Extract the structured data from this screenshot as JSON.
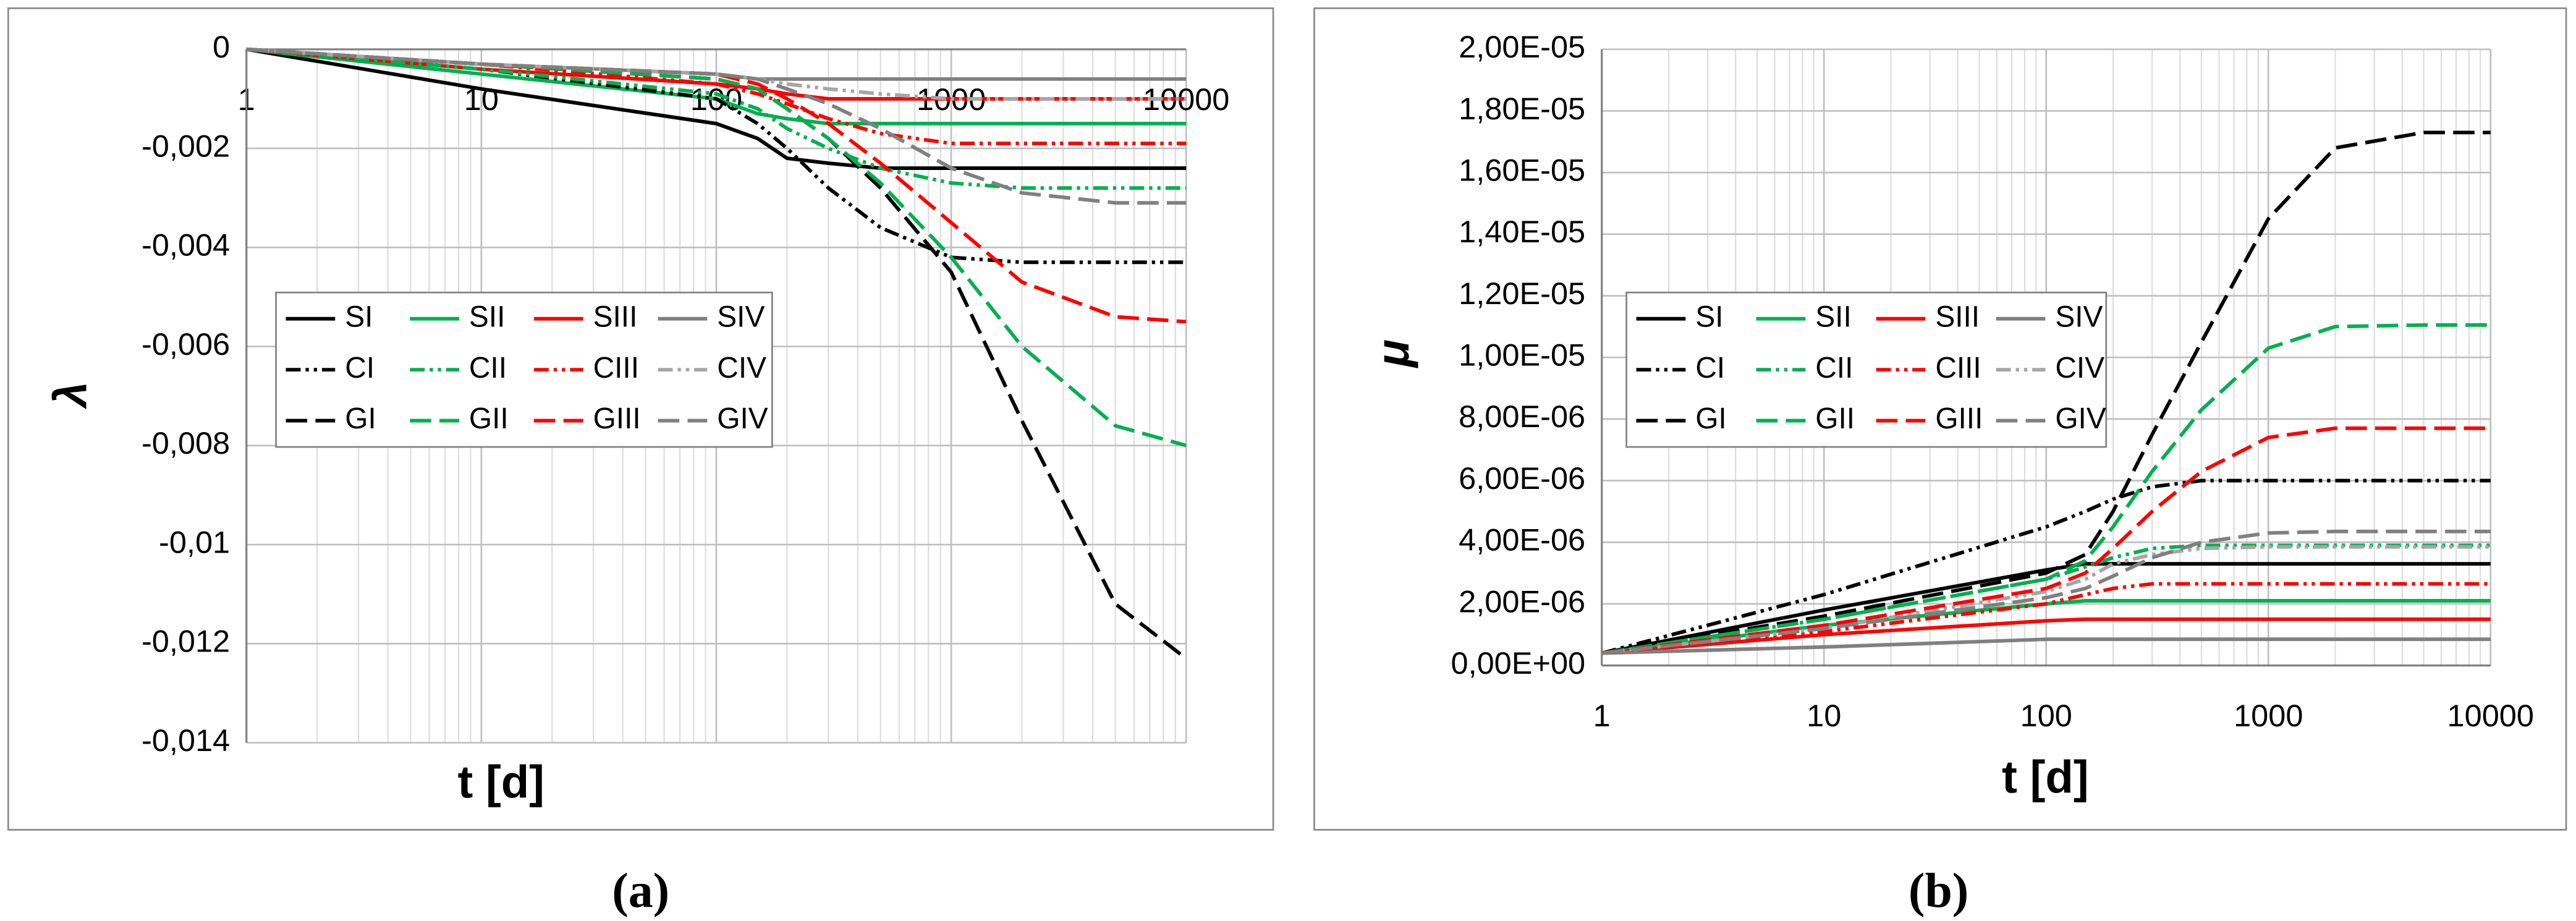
{
  "chart_data": [
    {
      "type": "line",
      "caption": "(a)",
      "x_label": "t [d]",
      "y_label": "λ",
      "log_x": true,
      "grid": true,
      "minor_grid": true,
      "xlim": [
        1,
        10000
      ],
      "xticks": [
        1,
        10,
        100,
        1000,
        10000
      ],
      "ylim": [
        -0.014,
        0
      ],
      "yticks": [
        0,
        {
          "value": -0.002,
          "label": "-0,002"
        },
        {
          "value": -0.004,
          "label": "-0,004"
        },
        {
          "value": -0.006,
          "label": "-0,006"
        },
        {
          "value": -0.008,
          "label": "-0,008"
        },
        {
          "value": -0.01,
          "label": "-0,01"
        },
        {
          "value": -0.012,
          "label": "-0,012"
        },
        {
          "value": -0.014,
          "label": "-0,014"
        }
      ],
      "x": [
        1,
        10,
        100,
        150,
        200,
        300,
        500,
        1000,
        2000,
        5000,
        10000
      ],
      "series": [
        {
          "name": "SI",
          "color": "#000000",
          "style": "solid",
          "values": [
            0,
            -0.0008,
            -0.0015,
            -0.0018,
            -0.0022,
            -0.0023,
            -0.0024,
            -0.0024,
            -0.0024,
            -0.0024,
            -0.0024
          ]
        },
        {
          "name": "SII",
          "color": "#00b050",
          "style": "solid",
          "values": [
            0,
            -0.0005,
            -0.001,
            -0.0013,
            -0.0014,
            -0.0015,
            -0.0015,
            -0.0015,
            -0.0015,
            -0.0015,
            -0.0015
          ]
        },
        {
          "name": "SIII",
          "color": "#ff0000",
          "style": "solid",
          "values": [
            0,
            -0.0004,
            -0.0007,
            -0.0008,
            -0.0009,
            -0.001,
            -0.001,
            -0.001,
            -0.001,
            -0.001,
            -0.001
          ]
        },
        {
          "name": "SIV",
          "color": "#808080",
          "style": "solid",
          "values": [
            0,
            -0.0003,
            -0.0005,
            -0.0006,
            -0.0006,
            -0.0006,
            -0.0006,
            -0.0006,
            -0.0006,
            -0.0006,
            -0.0006
          ]
        },
        {
          "name": "CI",
          "color": "#000000",
          "style": "dashdotdot",
          "values": [
            0,
            -0.0004,
            -0.001,
            -0.0015,
            -0.002,
            -0.0028,
            -0.0036,
            -0.0042,
            -0.0043,
            -0.0043,
            -0.0043
          ]
        },
        {
          "name": "CII",
          "color": "#00b050",
          "style": "dashdotdot",
          "values": [
            0,
            -0.0004,
            -0.0009,
            -0.0012,
            -0.0016,
            -0.002,
            -0.0024,
            -0.0027,
            -0.0028,
            -0.0028,
            -0.0028
          ]
        },
        {
          "name": "CIII",
          "color": "#ff0000",
          "style": "dashdotdot",
          "values": [
            0,
            -0.0003,
            -0.0007,
            -0.0009,
            -0.0011,
            -0.0014,
            -0.0017,
            -0.0019,
            -0.0019,
            -0.0019,
            -0.0019
          ]
        },
        {
          "name": "CIV",
          "color": "#a6a6a6",
          "style": "dashdotdot",
          "values": [
            0,
            -0.0003,
            -0.0005,
            -0.0006,
            -0.0007,
            -0.0008,
            -0.0009,
            -0.001,
            -0.001,
            -0.001,
            -0.001
          ]
        },
        {
          "name": "GI",
          "color": "#000000",
          "style": "dash",
          "values": [
            0,
            -0.0003,
            -0.0006,
            -0.0008,
            -0.0012,
            -0.0018,
            -0.0028,
            -0.0045,
            -0.0075,
            -0.0112,
            -0.0123
          ]
        },
        {
          "name": "GII",
          "color": "#00b050",
          "style": "dash",
          "values": [
            0,
            -0.0003,
            -0.0006,
            -0.0008,
            -0.0012,
            -0.0018,
            -0.0027,
            -0.0042,
            -0.006,
            -0.0076,
            -0.008
          ]
        },
        {
          "name": "GIII",
          "color": "#ff0000",
          "style": "dash",
          "values": [
            0,
            -0.0003,
            -0.0005,
            -0.0007,
            -0.001,
            -0.0015,
            -0.0023,
            -0.0035,
            -0.0047,
            -0.0054,
            -0.0055
          ]
        },
        {
          "name": "GIV",
          "color": "#808080",
          "style": "dash",
          "values": [
            0,
            -0.0003,
            -0.0005,
            -0.0006,
            -0.0008,
            -0.0011,
            -0.0016,
            -0.0024,
            -0.0029,
            -0.0031,
            -0.0031
          ]
        }
      ]
    },
    {
      "type": "line",
      "caption": "(b)",
      "x_label": "t [d]",
      "y_label": "μ",
      "log_x": true,
      "grid": true,
      "minor_grid": true,
      "xlim": [
        1,
        10000
      ],
      "xticks": [
        1,
        10,
        100,
        1000,
        10000
      ],
      "ylim": [
        0,
        2e-05
      ],
      "yticks": [
        {
          "value": 0,
          "label": "0,00E+00"
        },
        {
          "value": 2e-06,
          "label": "2,00E-06"
        },
        {
          "value": 4e-06,
          "label": "4,00E-06"
        },
        {
          "value": 6e-06,
          "label": "6,00E-06"
        },
        {
          "value": 8e-06,
          "label": "8,00E-06"
        },
        {
          "value": 1e-05,
          "label": "1,00E-05"
        },
        {
          "value": 1.2e-05,
          "label": "1,20E-05"
        },
        {
          "value": 1.4e-05,
          "label": "1,40E-05"
        },
        {
          "value": 1.6e-05,
          "label": "1,60E-05"
        },
        {
          "value": 1.8e-05,
          "label": "1,80E-05"
        },
        {
          "value": 2e-05,
          "label": "2,00E-05"
        }
      ],
      "x": [
        1,
        10,
        100,
        150,
        200,
        300,
        500,
        1000,
        2000,
        5000,
        10000
      ],
      "series": [
        {
          "name": "SI",
          "color": "#000000",
          "style": "solid",
          "values": [
            4e-07,
            1.8e-06,
            3.1e-06,
            3.3e-06,
            3.3e-06,
            3.3e-06,
            3.3e-06,
            3.3e-06,
            3.3e-06,
            3.3e-06,
            3.3e-06
          ]
        },
        {
          "name": "SII",
          "color": "#00b050",
          "style": "solid",
          "values": [
            4e-07,
            1.3e-06,
            2e-06,
            2.1e-06,
            2.1e-06,
            2.1e-06,
            2.1e-06,
            2.1e-06,
            2.1e-06,
            2.1e-06,
            2.1e-06
          ]
        },
        {
          "name": "SIII",
          "color": "#ff0000",
          "style": "solid",
          "values": [
            4e-07,
            1e-06,
            1.45e-06,
            1.5e-06,
            1.5e-06,
            1.5e-06,
            1.5e-06,
            1.5e-06,
            1.5e-06,
            1.5e-06,
            1.5e-06
          ]
        },
        {
          "name": "SIV",
          "color": "#808080",
          "style": "solid",
          "values": [
            4e-07,
            6e-07,
            8.5e-07,
            8.5e-07,
            8.5e-07,
            8.5e-07,
            8.5e-07,
            8.5e-07,
            8.5e-07,
            8.5e-07,
            8.5e-07
          ]
        },
        {
          "name": "CI",
          "color": "#000000",
          "style": "dashdotdot",
          "values": [
            4e-07,
            2.3e-06,
            4.5e-06,
            5e-06,
            5.4e-06,
            5.8e-06,
            6e-06,
            6e-06,
            6e-06,
            6e-06,
            6e-06
          ]
        },
        {
          "name": "CII",
          "color": "#00b050",
          "style": "dashdotdot",
          "values": [
            4e-07,
            1.5e-06,
            2.8e-06,
            3.2e-06,
            3.5e-06,
            3.8e-06,
            3.9e-06,
            3.9e-06,
            3.9e-06,
            3.9e-06,
            3.9e-06
          ]
        },
        {
          "name": "CIII",
          "color": "#ff0000",
          "style": "dashdotdot",
          "values": [
            4e-07,
            1.1e-06,
            2e-06,
            2.3e-06,
            2.5e-06,
            2.65e-06,
            2.65e-06,
            2.65e-06,
            2.65e-06,
            2.65e-06,
            2.65e-06
          ]
        },
        {
          "name": "CIV",
          "color": "#a6a6a6",
          "style": "dashdotdot",
          "values": [
            4e-07,
            1.2e-06,
            2.4e-06,
            2.8e-06,
            3.3e-06,
            3.6e-06,
            3.8e-06,
            3.85e-06,
            3.85e-06,
            3.85e-06,
            3.85e-06
          ]
        },
        {
          "name": "GI",
          "color": "#000000",
          "style": "dash",
          "values": [
            4e-07,
            1.6e-06,
            3e-06,
            3.6e-06,
            5e-06,
            7.5e-06,
            1.05e-05,
            1.45e-05,
            1.68e-05,
            1.73e-05,
            1.73e-05
          ]
        },
        {
          "name": "GII",
          "color": "#00b050",
          "style": "dash",
          "values": [
            4e-07,
            1.5e-06,
            2.8e-06,
            3.4e-06,
            4.5e-06,
            6.3e-06,
            8.3e-06,
            1.03e-05,
            1.1e-05,
            1.105e-05,
            1.105e-05
          ]
        },
        {
          "name": "GIII",
          "color": "#ff0000",
          "style": "dash",
          "values": [
            4e-07,
            1.3e-06,
            2.5e-06,
            3e-06,
            3.8e-06,
            5e-06,
            6.3e-06,
            7.4e-06,
            7.7e-06,
            7.7e-06,
            7.7e-06
          ]
        },
        {
          "name": "GIV",
          "color": "#808080",
          "style": "dash",
          "values": [
            4e-07,
            1.2e-06,
            2.2e-06,
            2.5e-06,
            2.9e-06,
            3.5e-06,
            4e-06,
            4.3e-06,
            4.35e-06,
            4.35e-06,
            4.35e-06
          ]
        }
      ]
    }
  ]
}
